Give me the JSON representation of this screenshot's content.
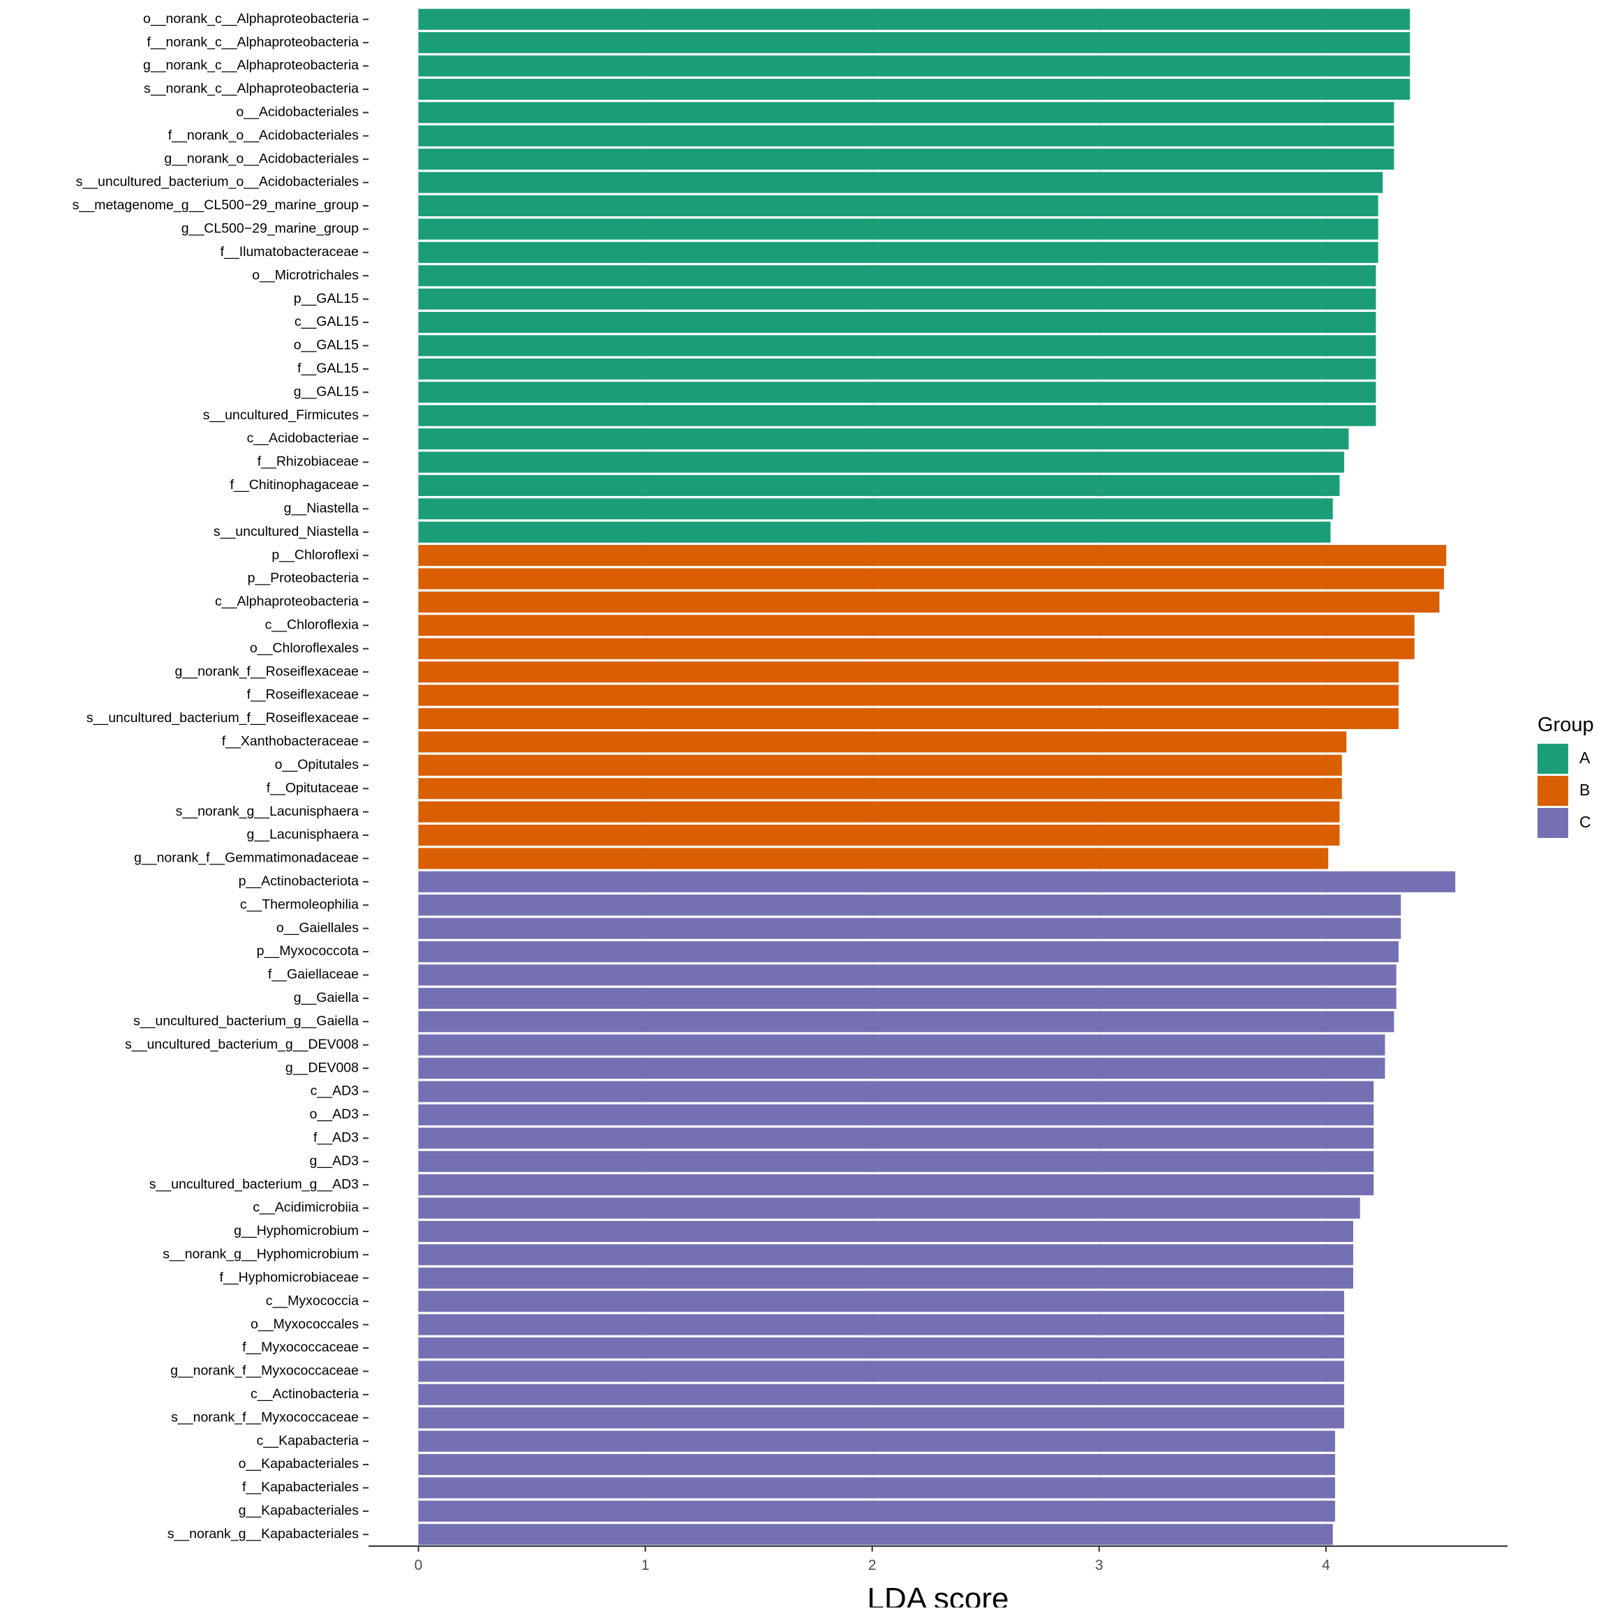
{
  "chart_data": {
    "type": "bar",
    "orientation": "horizontal",
    "xlabel": "LDA score",
    "ylabel": "",
    "xlim": [
      -0.22,
      4.8
    ],
    "x_ticks": [
      0,
      1,
      2,
      3,
      4
    ],
    "grid": "vertical major lines only",
    "legend": {
      "title": "Group",
      "placement": "right",
      "entries": [
        {
          "name": "A",
          "color": "#1b9e77"
        },
        {
          "name": "B",
          "color": "#d95f02"
        },
        {
          "name": "C",
          "color": "#7570b3"
        }
      ]
    },
    "bars": [
      {
        "label": "o__norank_c__Alphaproteobacteria",
        "value": 4.37,
        "group": "A"
      },
      {
        "label": "f__norank_c__Alphaproteobacteria",
        "value": 4.37,
        "group": "A"
      },
      {
        "label": "g__norank_c__Alphaproteobacteria",
        "value": 4.37,
        "group": "A"
      },
      {
        "label": "s__norank_c__Alphaproteobacteria",
        "value": 4.37,
        "group": "A"
      },
      {
        "label": "o__Acidobacteriales",
        "value": 4.3,
        "group": "A"
      },
      {
        "label": "f__norank_o__Acidobacteriales",
        "value": 4.3,
        "group": "A"
      },
      {
        "label": "g__norank_o__Acidobacteriales",
        "value": 4.3,
        "group": "A"
      },
      {
        "label": "s__uncultured_bacterium_o__Acidobacteriales",
        "value": 4.25,
        "group": "A"
      },
      {
        "label": "s__metagenome_g__CL500−29_marine_group",
        "value": 4.23,
        "group": "A"
      },
      {
        "label": "g__CL500−29_marine_group",
        "value": 4.23,
        "group": "A"
      },
      {
        "label": "f__Ilumatobacteraceae",
        "value": 4.23,
        "group": "A"
      },
      {
        "label": "o__Microtrichales",
        "value": 4.22,
        "group": "A"
      },
      {
        "label": "p__GAL15",
        "value": 4.22,
        "group": "A"
      },
      {
        "label": "c__GAL15",
        "value": 4.22,
        "group": "A"
      },
      {
        "label": "o__GAL15",
        "value": 4.22,
        "group": "A"
      },
      {
        "label": "f__GAL15",
        "value": 4.22,
        "group": "A"
      },
      {
        "label": "g__GAL15",
        "value": 4.22,
        "group": "A"
      },
      {
        "label": "s__uncultured_Firmicutes",
        "value": 4.22,
        "group": "A"
      },
      {
        "label": "c__Acidobacteriae",
        "value": 4.1,
        "group": "A"
      },
      {
        "label": "f__Rhizobiaceae",
        "value": 4.08,
        "group": "A"
      },
      {
        "label": "f__Chitinophagaceae",
        "value": 4.06,
        "group": "A"
      },
      {
        "label": "g__Niastella",
        "value": 4.03,
        "group": "A"
      },
      {
        "label": "s__uncultured_Niastella",
        "value": 4.02,
        "group": "A"
      },
      {
        "label": "p__Chloroflexi",
        "value": 4.53,
        "group": "B"
      },
      {
        "label": "p__Proteobacteria",
        "value": 4.52,
        "group": "B"
      },
      {
        "label": "c__Alphaproteobacteria",
        "value": 4.5,
        "group": "B"
      },
      {
        "label": "c__Chloroflexia",
        "value": 4.39,
        "group": "B"
      },
      {
        "label": "o__Chloroflexales",
        "value": 4.39,
        "group": "B"
      },
      {
        "label": "g__norank_f__Roseiflexaceae",
        "value": 4.32,
        "group": "B"
      },
      {
        "label": "f__Roseiflexaceae",
        "value": 4.32,
        "group": "B"
      },
      {
        "label": "s__uncultured_bacterium_f__Roseiflexaceae",
        "value": 4.32,
        "group": "B"
      },
      {
        "label": "f__Xanthobacteraceae",
        "value": 4.09,
        "group": "B"
      },
      {
        "label": "o__Opitutales",
        "value": 4.07,
        "group": "B"
      },
      {
        "label": "f__Opitutaceae",
        "value": 4.07,
        "group": "B"
      },
      {
        "label": "s__norank_g__Lacunisphaera",
        "value": 4.06,
        "group": "B"
      },
      {
        "label": "g__Lacunisphaera",
        "value": 4.06,
        "group": "B"
      },
      {
        "label": "g__norank_f__Gemmatimonadaceae",
        "value": 4.01,
        "group": "B"
      },
      {
        "label": "p__Actinobacteriota",
        "value": 4.57,
        "group": "C"
      },
      {
        "label": "c__Thermoleophilia",
        "value": 4.33,
        "group": "C"
      },
      {
        "label": "o__Gaiellales",
        "value": 4.33,
        "group": "C"
      },
      {
        "label": "p__Myxococcota",
        "value": 4.32,
        "group": "C"
      },
      {
        "label": "f__Gaiellaceae",
        "value": 4.31,
        "group": "C"
      },
      {
        "label": "g__Gaiella",
        "value": 4.31,
        "group": "C"
      },
      {
        "label": "s__uncultured_bacterium_g__Gaiella",
        "value": 4.3,
        "group": "C"
      },
      {
        "label": "s__uncultured_bacterium_g__DEV008",
        "value": 4.26,
        "group": "C"
      },
      {
        "label": "g__DEV008",
        "value": 4.26,
        "group": "C"
      },
      {
        "label": "c__AD3",
        "value": 4.21,
        "group": "C"
      },
      {
        "label": "o__AD3",
        "value": 4.21,
        "group": "C"
      },
      {
        "label": "f__AD3",
        "value": 4.21,
        "group": "C"
      },
      {
        "label": "g__AD3",
        "value": 4.21,
        "group": "C"
      },
      {
        "label": "s__uncultured_bacterium_g__AD3",
        "value": 4.21,
        "group": "C"
      },
      {
        "label": "c__Acidimicrobiia",
        "value": 4.15,
        "group": "C"
      },
      {
        "label": "g__Hyphomicrobium",
        "value": 4.12,
        "group": "C"
      },
      {
        "label": "s__norank_g__Hyphomicrobium",
        "value": 4.12,
        "group": "C"
      },
      {
        "label": "f__Hyphomicrobiaceae",
        "value": 4.12,
        "group": "C"
      },
      {
        "label": "c__Myxococcia",
        "value": 4.08,
        "group": "C"
      },
      {
        "label": "o__Myxococcales",
        "value": 4.08,
        "group": "C"
      },
      {
        "label": "f__Myxococcaceae",
        "value": 4.08,
        "group": "C"
      },
      {
        "label": "g__norank_f__Myxococcaceae",
        "value": 4.08,
        "group": "C"
      },
      {
        "label": "c__Actinobacteria",
        "value": 4.08,
        "group": "C"
      },
      {
        "label": "s__norank_f__Myxococcaceae",
        "value": 4.08,
        "group": "C"
      },
      {
        "label": "c__Kapabacteria",
        "value": 4.04,
        "group": "C"
      },
      {
        "label": "o__Kapabacteriales",
        "value": 4.04,
        "group": "C"
      },
      {
        "label": "f__Kapabacteriales",
        "value": 4.04,
        "group": "C"
      },
      {
        "label": "g__Kapabacteriales",
        "value": 4.04,
        "group": "C"
      },
      {
        "label": "s__norank_g__Kapabacteriales",
        "value": 4.03,
        "group": "C"
      }
    ]
  }
}
